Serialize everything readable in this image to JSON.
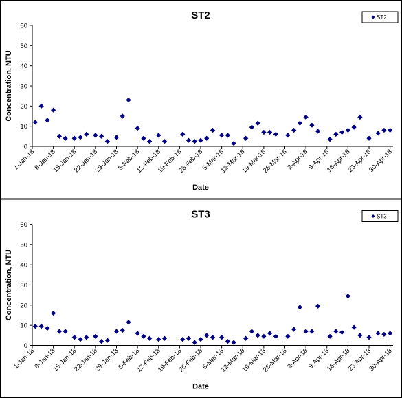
{
  "chart_data": [
    {
      "type": "scatter",
      "title": "ST2",
      "x_label": "Date",
      "y_label": "Concentration, NTU",
      "legend": "upper right",
      "x": [
        "2-Jan-18",
        "4-Jan-18",
        "6-Jan-18",
        "8-Jan-18",
        "10-Jan-18",
        "12-Jan-18",
        "15-Jan-18",
        "17-Jan-18",
        "19-Jan-18",
        "22-Jan-18",
        "24-Jan-18",
        "26-Jan-18",
        "29-Jan-18",
        "31-Jan-18",
        "2-Feb-18",
        "5-Feb-18",
        "7-Feb-18",
        "9-Feb-18",
        "12-Feb-18",
        "14-Feb-18",
        "20-Feb-18",
        "22-Feb-18",
        "24-Feb-18",
        "26-Feb-18",
        "28-Feb-18",
        "2-Mar-18",
        "5-Mar-18",
        "7-Mar-18",
        "9-Mar-18",
        "13-Mar-18",
        "15-Mar-18",
        "17-Mar-18",
        "19-Mar-18",
        "21-Mar-18",
        "23-Mar-18",
        "27-Mar-18",
        "29-Mar-18",
        "31-Mar-18",
        "2-Apr-18",
        "4-Apr-18",
        "6-Apr-18",
        "10-Apr-18",
        "12-Apr-18",
        "14-Apr-18",
        "16-Apr-18",
        "18-Apr-18",
        "20-Apr-18",
        "23-Apr-18",
        "26-Apr-18",
        "28-Apr-18",
        "30-Apr-18"
      ],
      "series": [
        {
          "name": "ST2",
          "color": "#000080",
          "values": [
            12,
            20,
            13,
            18,
            5,
            4,
            4,
            4.5,
            6,
            5.5,
            5,
            2.5,
            4.5,
            15,
            23,
            9,
            4,
            2.5,
            5.5,
            2.5,
            6,
            3,
            2.5,
            3,
            4,
            8,
            5.5,
            5.5,
            1.5,
            4,
            9.5,
            11.5,
            7,
            7,
            6,
            5.5,
            8,
            11.5,
            14.5,
            10.5,
            7.5,
            3.5,
            6,
            7,
            8,
            9.5,
            14.5,
            4,
            6.5,
            8,
            8
          ]
        }
      ],
      "xlim": [
        "1-Jan-18",
        "1-May-18"
      ],
      "xticks": [
        "1-Jan-18",
        "8-Jan-18",
        "15-Jan-18",
        "22-Jan-18",
        "29-Jan-18",
        "5-Feb-18",
        "12-Feb-18",
        "19-Feb-18",
        "26-Feb-18",
        "5-Mar-18",
        "12-Mar-18",
        "19-Mar-18",
        "26-Mar-18",
        "2-Apr-18",
        "9-Apr-18",
        "16-Apr-18",
        "23-Apr-18",
        "30-Apr-18"
      ],
      "ylim": [
        0,
        60
      ],
      "yticks": [
        0,
        10,
        20,
        30,
        40,
        50,
        60
      ],
      "grid": false
    },
    {
      "type": "scatter",
      "title": "ST3",
      "x_label": "Date",
      "y_label": "Concentration, NTU",
      "legend": "upper right",
      "x": [
        "2-Jan-18",
        "4-Jan-18",
        "6-Jan-18",
        "8-Jan-18",
        "10-Jan-18",
        "12-Jan-18",
        "15-Jan-18",
        "17-Jan-18",
        "19-Jan-18",
        "22-Jan-18",
        "24-Jan-18",
        "26-Jan-18",
        "29-Jan-18",
        "31-Jan-18",
        "2-Feb-18",
        "5-Feb-18",
        "7-Feb-18",
        "9-Feb-18",
        "12-Feb-18",
        "14-Feb-18",
        "20-Feb-18",
        "22-Feb-18",
        "24-Feb-18",
        "26-Feb-18",
        "28-Feb-18",
        "2-Mar-18",
        "5-Mar-18",
        "7-Mar-18",
        "9-Mar-18",
        "13-Mar-18",
        "15-Mar-18",
        "17-Mar-18",
        "19-Mar-18",
        "21-Mar-18",
        "23-Mar-18",
        "27-Mar-18",
        "29-Mar-18",
        "31-Mar-18",
        "2-Apr-18",
        "4-Apr-18",
        "6-Apr-18",
        "10-Apr-18",
        "12-Apr-18",
        "14-Apr-18",
        "16-Apr-18",
        "18-Apr-18",
        "20-Apr-18",
        "23-Apr-18",
        "26-Apr-18",
        "28-Apr-18",
        "30-Apr-18"
      ],
      "series": [
        {
          "name": "ST3",
          "color": "#000080",
          "values": [
            9.5,
            9.5,
            8.5,
            16,
            7,
            7,
            4,
            3,
            4,
            4.5,
            2,
            2.5,
            7,
            7.5,
            11.5,
            6,
            4.5,
            3.5,
            3,
            3.5,
            3,
            3.5,
            1.5,
            3,
            5,
            4,
            4,
            2,
            1.5,
            3.5,
            7,
            5,
            4.5,
            6,
            4.5,
            4.5,
            8,
            19,
            7,
            7,
            19.5,
            4.5,
            7,
            6.5,
            24.5,
            9,
            5,
            4,
            6,
            5.5,
            6
          ]
        }
      ],
      "xlim": [
        "1-Jan-18",
        "1-May-18"
      ],
      "xticks": [
        "1-Jan-18",
        "8-Jan-18",
        "15-Jan-18",
        "22-Jan-18",
        "29-Jan-18",
        "5-Feb-18",
        "12-Feb-18",
        "19-Feb-18",
        "26-Feb-18",
        "5-Mar-18",
        "12-Mar-18",
        "19-Mar-18",
        "26-Mar-18",
        "2-Apr-18",
        "9-Apr-18",
        "16-Apr-18",
        "23-Apr-18",
        "30-Apr-18"
      ],
      "ylim": [
        0,
        60
      ],
      "yticks": [
        0,
        10,
        20,
        30,
        40,
        50,
        60
      ],
      "grid": false
    }
  ]
}
